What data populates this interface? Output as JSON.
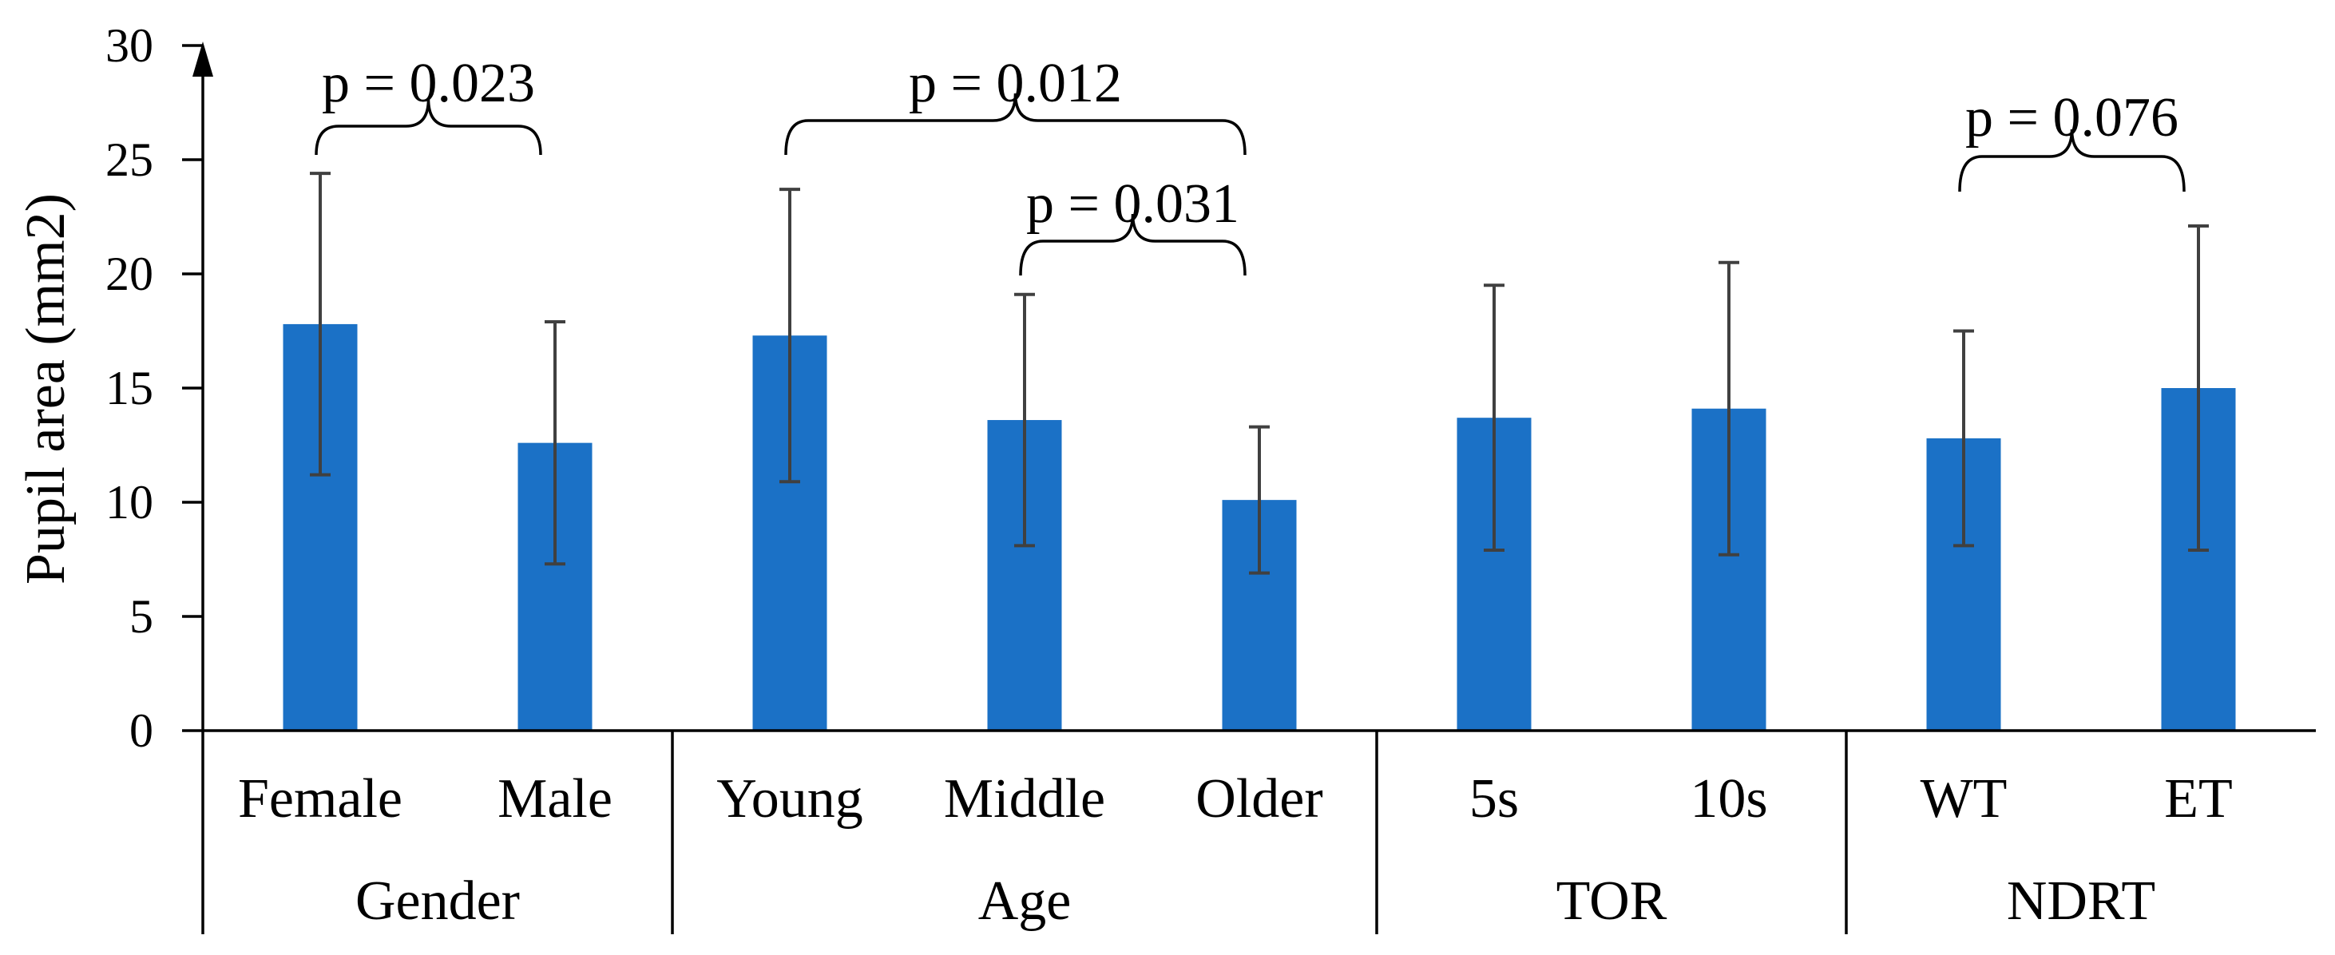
{
  "chart_data": {
    "type": "bar",
    "ylabel": "Pupil area (mm2)",
    "ylim": [
      0,
      30
    ],
    "yticks": [
      0,
      5,
      10,
      15,
      20,
      25,
      30
    ],
    "categories": [
      "Female",
      "Male",
      "Young",
      "Middle",
      "Older",
      "5s",
      "10s",
      "WT",
      "ET"
    ],
    "groups": [
      {
        "name": "Gender",
        "size": 2
      },
      {
        "name": "Age",
        "size": 3
      },
      {
        "name": "TOR",
        "size": 2
      },
      {
        "name": "NDRT",
        "size": 2
      }
    ],
    "values": [
      17.8,
      12.6,
      17.3,
      13.6,
      10.1,
      13.7,
      14.1,
      12.8,
      15.0
    ],
    "errors": [
      6.6,
      5.3,
      6.4,
      5.5,
      3.2,
      5.8,
      6.4,
      4.7,
      7.1
    ],
    "annotations": [
      {
        "from_index": 0,
        "to_index": 1,
        "label": "p = 0.023"
      },
      {
        "from_index": 2,
        "to_index": 4,
        "label": "p = 0.012"
      },
      {
        "from_index": 3,
        "to_index": 4,
        "label": "p = 0.031"
      },
      {
        "from_index": 7,
        "to_index": 8,
        "label": "p = 0.076"
      }
    ],
    "colors": {
      "bar": "#1b71c6",
      "error_bar": "#404040",
      "axis": "#000000"
    }
  }
}
